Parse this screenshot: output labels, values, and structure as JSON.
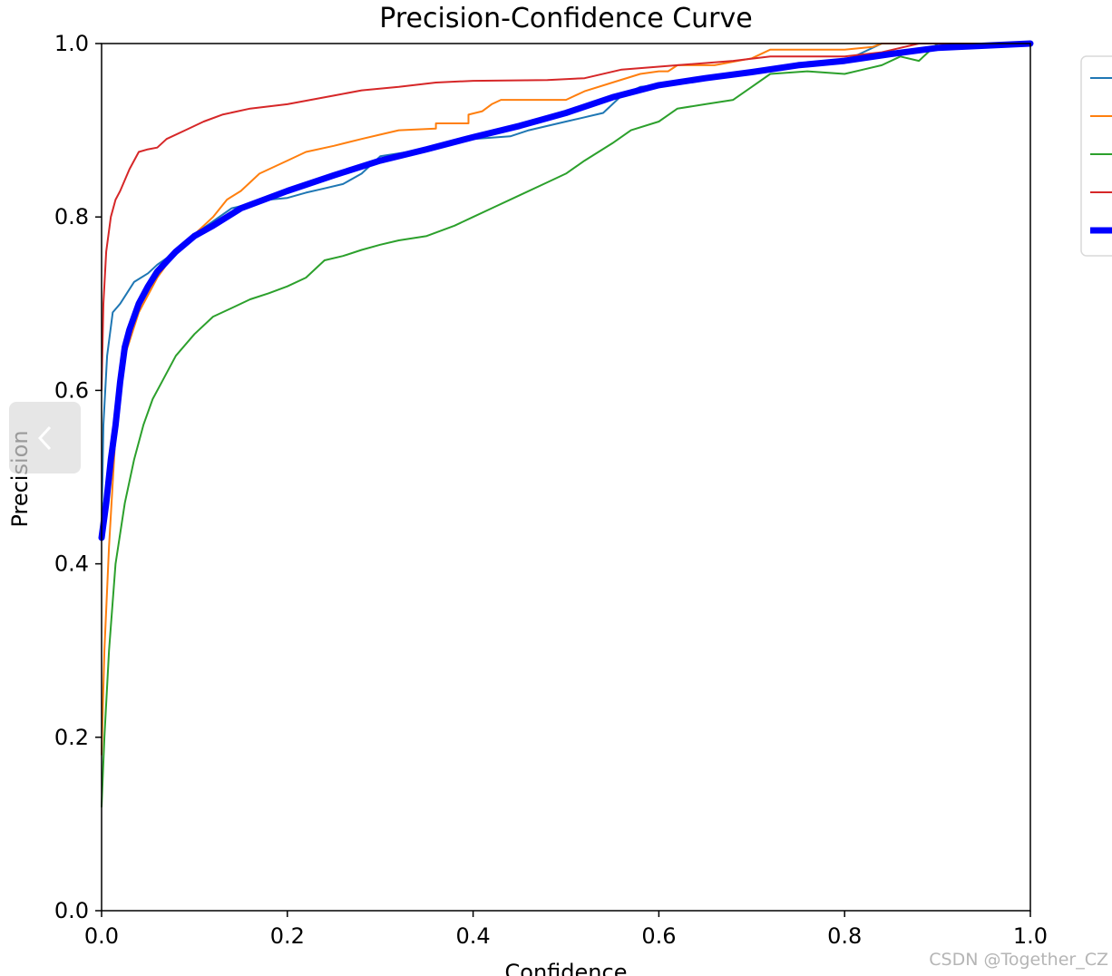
{
  "chart_data": {
    "type": "line",
    "title": "Precision-Confidence Curve",
    "xlabel": "Confidence",
    "ylabel": "Precision",
    "xlim": [
      0,
      1
    ],
    "ylim": [
      0,
      1
    ],
    "x_ticks": [
      "0.0",
      "0.2",
      "0.4",
      "0.6",
      "0.8",
      "1.0"
    ],
    "y_ticks": [
      "0.0",
      "0.2",
      "0.4",
      "0.6",
      "0.8",
      "1.0"
    ],
    "grid": false,
    "legend_placement": "upper-right-outside",
    "legend_text_visible": false,
    "series": [
      {
        "color": "#1f77b4",
        "linewidth": 2,
        "points": [
          [
            0,
            0.44
          ],
          [
            0.002,
            0.56
          ],
          [
            0.006,
            0.64
          ],
          [
            0.012,
            0.69
          ],
          [
            0.02,
            0.7
          ],
          [
            0.035,
            0.725
          ],
          [
            0.05,
            0.735
          ],
          [
            0.06,
            0.745
          ],
          [
            0.08,
            0.76
          ],
          [
            0.1,
            0.78
          ],
          [
            0.12,
            0.795
          ],
          [
            0.14,
            0.81
          ],
          [
            0.16,
            0.815
          ],
          [
            0.18,
            0.82
          ],
          [
            0.2,
            0.822
          ],
          [
            0.22,
            0.828
          ],
          [
            0.24,
            0.833
          ],
          [
            0.26,
            0.838
          ],
          [
            0.28,
            0.85
          ],
          [
            0.3,
            0.87
          ],
          [
            0.33,
            0.875
          ],
          [
            0.36,
            0.88
          ],
          [
            0.4,
            0.89
          ],
          [
            0.44,
            0.893
          ],
          [
            0.46,
            0.9
          ],
          [
            0.5,
            0.91
          ],
          [
            0.52,
            0.915
          ],
          [
            0.54,
            0.92
          ],
          [
            0.56,
            0.94
          ],
          [
            0.58,
            0.95
          ],
          [
            0.6,
            0.952
          ],
          [
            0.64,
            0.96
          ],
          [
            0.68,
            0.962
          ],
          [
            0.72,
            0.97
          ],
          [
            0.76,
            0.975
          ],
          [
            0.78,
            0.978
          ],
          [
            0.8,
            0.98
          ],
          [
            0.82,
            0.99
          ],
          [
            0.84,
            1.0
          ],
          [
            0.9,
            1.0
          ],
          [
            1.0,
            1.0
          ]
        ]
      },
      {
        "color": "#ff7f0e",
        "linewidth": 2,
        "points": [
          [
            0,
            0.18
          ],
          [
            0.003,
            0.3
          ],
          [
            0.008,
            0.42
          ],
          [
            0.015,
            0.55
          ],
          [
            0.025,
            0.64
          ],
          [
            0.04,
            0.69
          ],
          [
            0.06,
            0.73
          ],
          [
            0.08,
            0.76
          ],
          [
            0.1,
            0.78
          ],
          [
            0.12,
            0.8
          ],
          [
            0.135,
            0.82
          ],
          [
            0.15,
            0.83
          ],
          [
            0.17,
            0.85
          ],
          [
            0.2,
            0.865
          ],
          [
            0.22,
            0.875
          ],
          [
            0.25,
            0.882
          ],
          [
            0.28,
            0.89
          ],
          [
            0.3,
            0.895
          ],
          [
            0.32,
            0.9
          ],
          [
            0.36,
            0.902
          ],
          [
            0.36,
            0.908
          ],
          [
            0.38,
            0.908
          ],
          [
            0.395,
            0.908
          ],
          [
            0.395,
            0.918
          ],
          [
            0.41,
            0.922
          ],
          [
            0.42,
            0.93
          ],
          [
            0.43,
            0.935
          ],
          [
            0.5,
            0.935
          ],
          [
            0.52,
            0.945
          ],
          [
            0.55,
            0.955
          ],
          [
            0.58,
            0.965
          ],
          [
            0.6,
            0.968
          ],
          [
            0.61,
            0.968
          ],
          [
            0.62,
            0.975
          ],
          [
            0.66,
            0.975
          ],
          [
            0.7,
            0.983
          ],
          [
            0.72,
            0.993
          ],
          [
            0.8,
            0.993
          ],
          [
            0.83,
            0.996
          ],
          [
            0.84,
            1.0
          ],
          [
            0.9,
            1.0
          ],
          [
            1.0,
            1.0
          ]
        ]
      },
      {
        "color": "#2ca02c",
        "linewidth": 2,
        "points": [
          [
            0,
            0.12
          ],
          [
            0.003,
            0.2
          ],
          [
            0.008,
            0.3
          ],
          [
            0.015,
            0.4
          ],
          [
            0.025,
            0.47
          ],
          [
            0.035,
            0.52
          ],
          [
            0.045,
            0.56
          ],
          [
            0.055,
            0.59
          ],
          [
            0.065,
            0.61
          ],
          [
            0.08,
            0.64
          ],
          [
            0.1,
            0.665
          ],
          [
            0.12,
            0.685
          ],
          [
            0.14,
            0.695
          ],
          [
            0.16,
            0.705
          ],
          [
            0.18,
            0.712
          ],
          [
            0.2,
            0.72
          ],
          [
            0.22,
            0.73
          ],
          [
            0.24,
            0.75
          ],
          [
            0.26,
            0.755
          ],
          [
            0.28,
            0.762
          ],
          [
            0.3,
            0.768
          ],
          [
            0.32,
            0.773
          ],
          [
            0.35,
            0.778
          ],
          [
            0.38,
            0.79
          ],
          [
            0.4,
            0.8
          ],
          [
            0.42,
            0.81
          ],
          [
            0.45,
            0.825
          ],
          [
            0.48,
            0.84
          ],
          [
            0.5,
            0.85
          ],
          [
            0.52,
            0.865
          ],
          [
            0.55,
            0.885
          ],
          [
            0.57,
            0.9
          ],
          [
            0.6,
            0.91
          ],
          [
            0.62,
            0.925
          ],
          [
            0.65,
            0.93
          ],
          [
            0.68,
            0.935
          ],
          [
            0.7,
            0.95
          ],
          [
            0.72,
            0.965
          ],
          [
            0.76,
            0.968
          ],
          [
            0.8,
            0.965
          ],
          [
            0.82,
            0.97
          ],
          [
            0.84,
            0.975
          ],
          [
            0.86,
            0.985
          ],
          [
            0.88,
            0.98
          ],
          [
            0.9,
            1.0
          ],
          [
            1.0,
            1.0
          ]
        ]
      },
      {
        "color": "#d62728",
        "linewidth": 2,
        "points": [
          [
            0,
            0.6
          ],
          [
            0.002,
            0.7
          ],
          [
            0.005,
            0.76
          ],
          [
            0.01,
            0.8
          ],
          [
            0.015,
            0.82
          ],
          [
            0.02,
            0.83
          ],
          [
            0.03,
            0.855
          ],
          [
            0.04,
            0.875
          ],
          [
            0.05,
            0.878
          ],
          [
            0.06,
            0.88
          ],
          [
            0.07,
            0.89
          ],
          [
            0.09,
            0.9
          ],
          [
            0.11,
            0.91
          ],
          [
            0.13,
            0.918
          ],
          [
            0.16,
            0.925
          ],
          [
            0.2,
            0.93
          ],
          [
            0.25,
            0.94
          ],
          [
            0.28,
            0.946
          ],
          [
            0.32,
            0.95
          ],
          [
            0.36,
            0.955
          ],
          [
            0.4,
            0.957
          ],
          [
            0.48,
            0.958
          ],
          [
            0.52,
            0.96
          ],
          [
            0.56,
            0.97
          ],
          [
            0.62,
            0.975
          ],
          [
            0.68,
            0.98
          ],
          [
            0.72,
            0.985
          ],
          [
            0.76,
            0.985
          ],
          [
            0.8,
            0.985
          ],
          [
            0.84,
            0.99
          ],
          [
            0.86,
            0.995
          ],
          [
            0.88,
            1.0
          ],
          [
            1.0,
            1.0
          ]
        ]
      },
      {
        "color": "#0000ff",
        "linewidth": 7,
        "points": [
          [
            0,
            0.43
          ],
          [
            0.005,
            0.47
          ],
          [
            0.01,
            0.52
          ],
          [
            0.015,
            0.56
          ],
          [
            0.02,
            0.61
          ],
          [
            0.025,
            0.65
          ],
          [
            0.03,
            0.67
          ],
          [
            0.04,
            0.7
          ],
          [
            0.05,
            0.72
          ],
          [
            0.06,
            0.737
          ],
          [
            0.08,
            0.76
          ],
          [
            0.1,
            0.778
          ],
          [
            0.12,
            0.79
          ],
          [
            0.15,
            0.81
          ],
          [
            0.2,
            0.83
          ],
          [
            0.25,
            0.848
          ],
          [
            0.3,
            0.865
          ],
          [
            0.35,
            0.878
          ],
          [
            0.4,
            0.892
          ],
          [
            0.45,
            0.905
          ],
          [
            0.5,
            0.92
          ],
          [
            0.55,
            0.938
          ],
          [
            0.6,
            0.952
          ],
          [
            0.65,
            0.96
          ],
          [
            0.7,
            0.967
          ],
          [
            0.75,
            0.975
          ],
          [
            0.8,
            0.98
          ],
          [
            0.85,
            0.988
          ],
          [
            0.9,
            0.995
          ],
          [
            1.0,
            1.0
          ]
        ]
      }
    ]
  },
  "watermark": "CSDN @Together_CZ",
  "nav": {
    "back_glyph": "<"
  }
}
